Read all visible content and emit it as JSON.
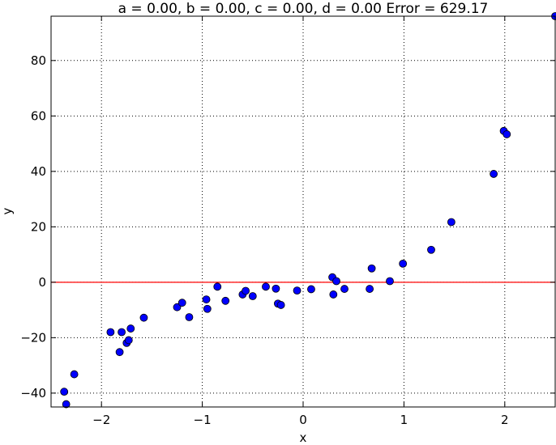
{
  "chart_data": {
    "type": "scatter",
    "title": "a = 0.00, b = 0.00, c = 0.00, d = 0.00 Error = 629.17",
    "xlabel": "x",
    "ylabel": "y",
    "xlim": [
      -2.5,
      2.5
    ],
    "ylim": [
      -45,
      96
    ],
    "grid": true,
    "x_ticks": [
      -2,
      -1,
      0,
      1,
      2
    ],
    "y_ticks": [
      -40,
      -20,
      0,
      20,
      40,
      60,
      80
    ],
    "x_tick_labels": [
      "−2",
      "−1",
      "0",
      "1",
      "2"
    ],
    "y_tick_labels": [
      "−40",
      "−20",
      "0",
      "20",
      "40",
      "60",
      "80"
    ],
    "colors": {
      "points": "#0000ff",
      "fit_line": "#ff0000"
    },
    "fit_line": {
      "y": 0
    },
    "points": [
      {
        "x": -2.37,
        "y": -39.5
      },
      {
        "x": -2.35,
        "y": -44.0
      },
      {
        "x": -2.27,
        "y": -33.2
      },
      {
        "x": -1.91,
        "y": -18.0
      },
      {
        "x": -1.8,
        "y": -18.0
      },
      {
        "x": -1.82,
        "y": -25.2
      },
      {
        "x": -1.75,
        "y": -21.9
      },
      {
        "x": -1.73,
        "y": -20.9
      },
      {
        "x": -1.71,
        "y": -16.7
      },
      {
        "x": -1.58,
        "y": -12.8
      },
      {
        "x": -1.25,
        "y": -9.0
      },
      {
        "x": -1.2,
        "y": -7.4
      },
      {
        "x": -1.13,
        "y": -12.6
      },
      {
        "x": -0.96,
        "y": -6.2
      },
      {
        "x": -0.95,
        "y": -9.6
      },
      {
        "x": -0.85,
        "y": -1.6
      },
      {
        "x": -0.77,
        "y": -6.7
      },
      {
        "x": -0.6,
        "y": -4.4
      },
      {
        "x": -0.57,
        "y": -3.1
      },
      {
        "x": -0.5,
        "y": -5.0
      },
      {
        "x": -0.37,
        "y": -1.6
      },
      {
        "x": -0.27,
        "y": -2.3
      },
      {
        "x": -0.25,
        "y": -7.7
      },
      {
        "x": -0.22,
        "y": -8.2
      },
      {
        "x": -0.06,
        "y": -3.0
      },
      {
        "x": 0.08,
        "y": -2.5
      },
      {
        "x": 0.29,
        "y": 1.8
      },
      {
        "x": 0.3,
        "y": -4.4
      },
      {
        "x": 0.33,
        "y": 0.4
      },
      {
        "x": 0.41,
        "y": -2.4
      },
      {
        "x": 0.66,
        "y": -2.4
      },
      {
        "x": 0.68,
        "y": 5.0
      },
      {
        "x": 0.86,
        "y": 0.4
      },
      {
        "x": 0.99,
        "y": 6.7
      },
      {
        "x": 1.27,
        "y": 11.7
      },
      {
        "x": 1.47,
        "y": 21.7
      },
      {
        "x": 1.89,
        "y": 39.1
      },
      {
        "x": 1.99,
        "y": 54.6
      },
      {
        "x": 2.02,
        "y": 53.4
      },
      {
        "x": 2.5,
        "y": 96.0
      }
    ]
  }
}
